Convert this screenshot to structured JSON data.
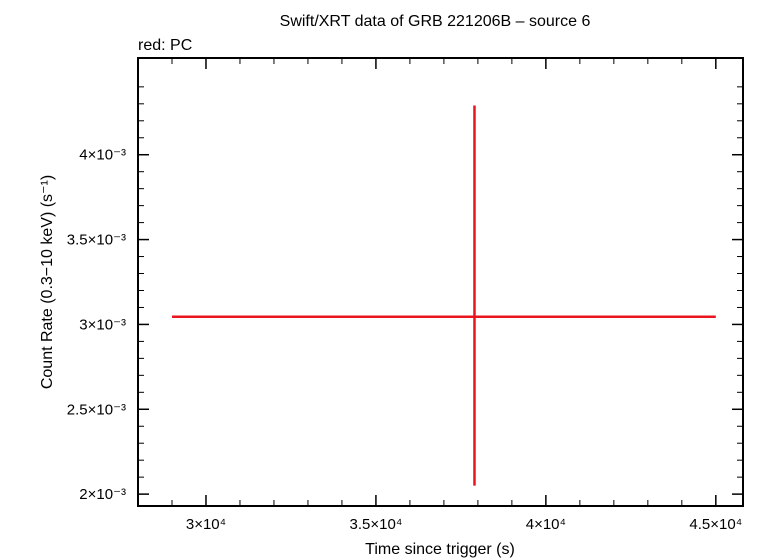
{
  "chart_data": {
    "type": "scatter",
    "title": "Swift/XRT data of GRB 221206B – source 6",
    "subtitle": "red: PC",
    "xlabel": "Time since trigger (s)",
    "ylabel": "Count Rate (0.3−10 keV) (s⁻¹)",
    "xlim": [
      28000,
      45800
    ],
    "ylim": [
      0.00193,
      0.00457
    ],
    "x_ticks": [
      {
        "value": 30000,
        "label": "3×10⁴"
      },
      {
        "value": 35000,
        "label": "3.5×10⁴"
      },
      {
        "value": 40000,
        "label": "4×10⁴"
      },
      {
        "value": 45000,
        "label": "4.5×10⁴"
      }
    ],
    "y_ticks": [
      {
        "value": 0.002,
        "label": "2×10⁻³"
      },
      {
        "value": 0.0025,
        "label": "2.5×10⁻³"
      },
      {
        "value": 0.003,
        "label": "3×10⁻³"
      },
      {
        "value": 0.0035,
        "label": "3.5×10⁻³"
      },
      {
        "value": 0.004,
        "label": "4×10⁻³"
      }
    ],
    "series": [
      {
        "name": "PC",
        "color": "#e8141e",
        "points": [
          {
            "x": 37900,
            "y": 0.003045,
            "xerr_low": 29000,
            "xerr_high": 45000,
            "yerr_low": 0.00205,
            "yerr_high": 0.00429
          }
        ]
      }
    ],
    "grid": false,
    "legend": "none"
  }
}
